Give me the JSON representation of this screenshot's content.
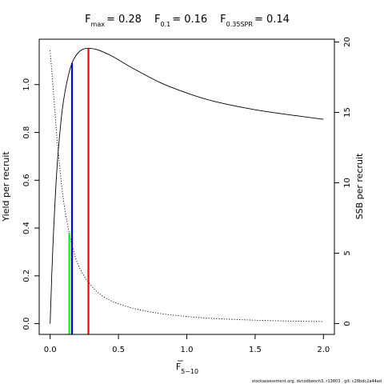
{
  "chart_data": {
    "type": "line",
    "title_parts": [
      {
        "base": "F",
        "sub": "max",
        "value": "= 0.28"
      },
      {
        "base": "F",
        "sub": "0.1",
        "value": "= 0.16"
      },
      {
        "base": "F",
        "sub": "0.35SPR",
        "value": "= 0.14"
      }
    ],
    "xlabel": {
      "base": "F",
      "sub": "5−10"
    },
    "ylabel_left": "Yield per recruit",
    "ylabel_right": "SSB per recruit",
    "xlim": [
      -0.08,
      2.08
    ],
    "ylim_left": [
      -0.045,
      1.19
    ],
    "ylim_right": [
      -0.77,
      20.2
    ],
    "x_ticks": [
      0,
      0.5,
      1,
      1.5,
      2
    ],
    "x_tick_labels": [
      "0.0",
      "0.5",
      "1.0",
      "1.5",
      "2.0"
    ],
    "y_left_ticks": [
      0,
      0.2,
      0.4,
      0.6,
      0.8,
      1.0
    ],
    "y_left_tick_labels": [
      "0.0",
      "0.2",
      "0.4",
      "0.6",
      "0.8",
      "1.0"
    ],
    "y_right_ticks": [
      0,
      5,
      10,
      15,
      20
    ],
    "y_right_tick_labels": [
      "0",
      "5",
      "10",
      "15",
      "20"
    ],
    "series": [
      {
        "axis": "left",
        "line_style": "solid",
        "color": "#000000",
        "x": [
          0,
          0.02,
          0.05,
          0.08,
          0.1,
          0.13,
          0.16,
          0.2,
          0.24,
          0.28,
          0.35,
          0.45,
          0.6,
          0.8,
          1.0,
          1.2,
          1.5,
          1.8,
          2.0
        ],
        "y": [
          0.0,
          0.32,
          0.65,
          0.85,
          0.94,
          1.03,
          1.09,
          1.13,
          1.148,
          1.152,
          1.145,
          1.12,
          1.07,
          1.01,
          0.965,
          0.93,
          0.895,
          0.87,
          0.855
        ]
      },
      {
        "axis": "right",
        "line_style": "dotted",
        "color": "#000000",
        "x": [
          0,
          0.02,
          0.05,
          0.08,
          0.1,
          0.13,
          0.16,
          0.2,
          0.25,
          0.28,
          0.35,
          0.45,
          0.6,
          0.8,
          1.0,
          1.2,
          1.5,
          1.8,
          2.0
        ],
        "y": [
          19.4,
          17.0,
          13.2,
          10.2,
          8.6,
          6.9,
          5.55,
          4.3,
          3.35,
          2.95,
          2.2,
          1.6,
          1.1,
          0.72,
          0.5,
          0.36,
          0.24,
          0.17,
          0.14
        ]
      }
    ],
    "reference_lines": [
      {
        "name": "F_max",
        "x": 0.28,
        "y": 1.152,
        "color": "#ff0000"
      },
      {
        "name": "F_0.1",
        "x": 0.16,
        "y": 1.09,
        "color": "#0000ff"
      },
      {
        "name": "F_0.35SPR",
        "x": 0.14,
        "y": 0.38,
        "color": "#00ff00"
      }
    ],
    "footer": "stockassessment.org, dvcodbench3, r13803 , git: c28bdc2a44ad"
  }
}
